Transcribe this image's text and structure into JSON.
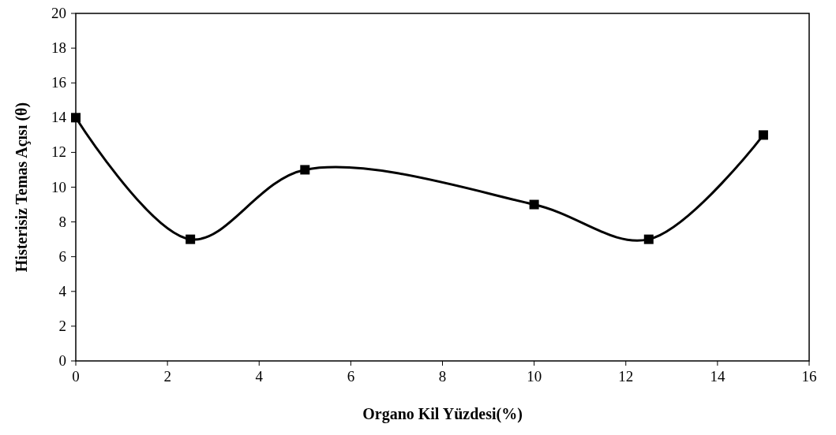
{
  "chart_data": {
    "type": "line",
    "xlabel": "Organo Kil Yüzdesi(%)",
    "ylabel": "Histerisiz Temas Açısı (θ)",
    "x": [
      0,
      2.5,
      5,
      10,
      12.5,
      15
    ],
    "series": [
      {
        "color": "#000000",
        "values": [
          14,
          7,
          11,
          9,
          7,
          13
        ]
      }
    ],
    "xlim": [
      0,
      16
    ],
    "xticks": [
      0,
      2,
      4,
      6,
      8,
      10,
      12,
      14,
      16
    ],
    "ylim": [
      0,
      20
    ],
    "yticks": [
      0,
      2,
      4,
      6,
      8,
      10,
      12,
      14,
      16,
      18,
      20
    ],
    "marker": "square",
    "line_style": "solid"
  }
}
